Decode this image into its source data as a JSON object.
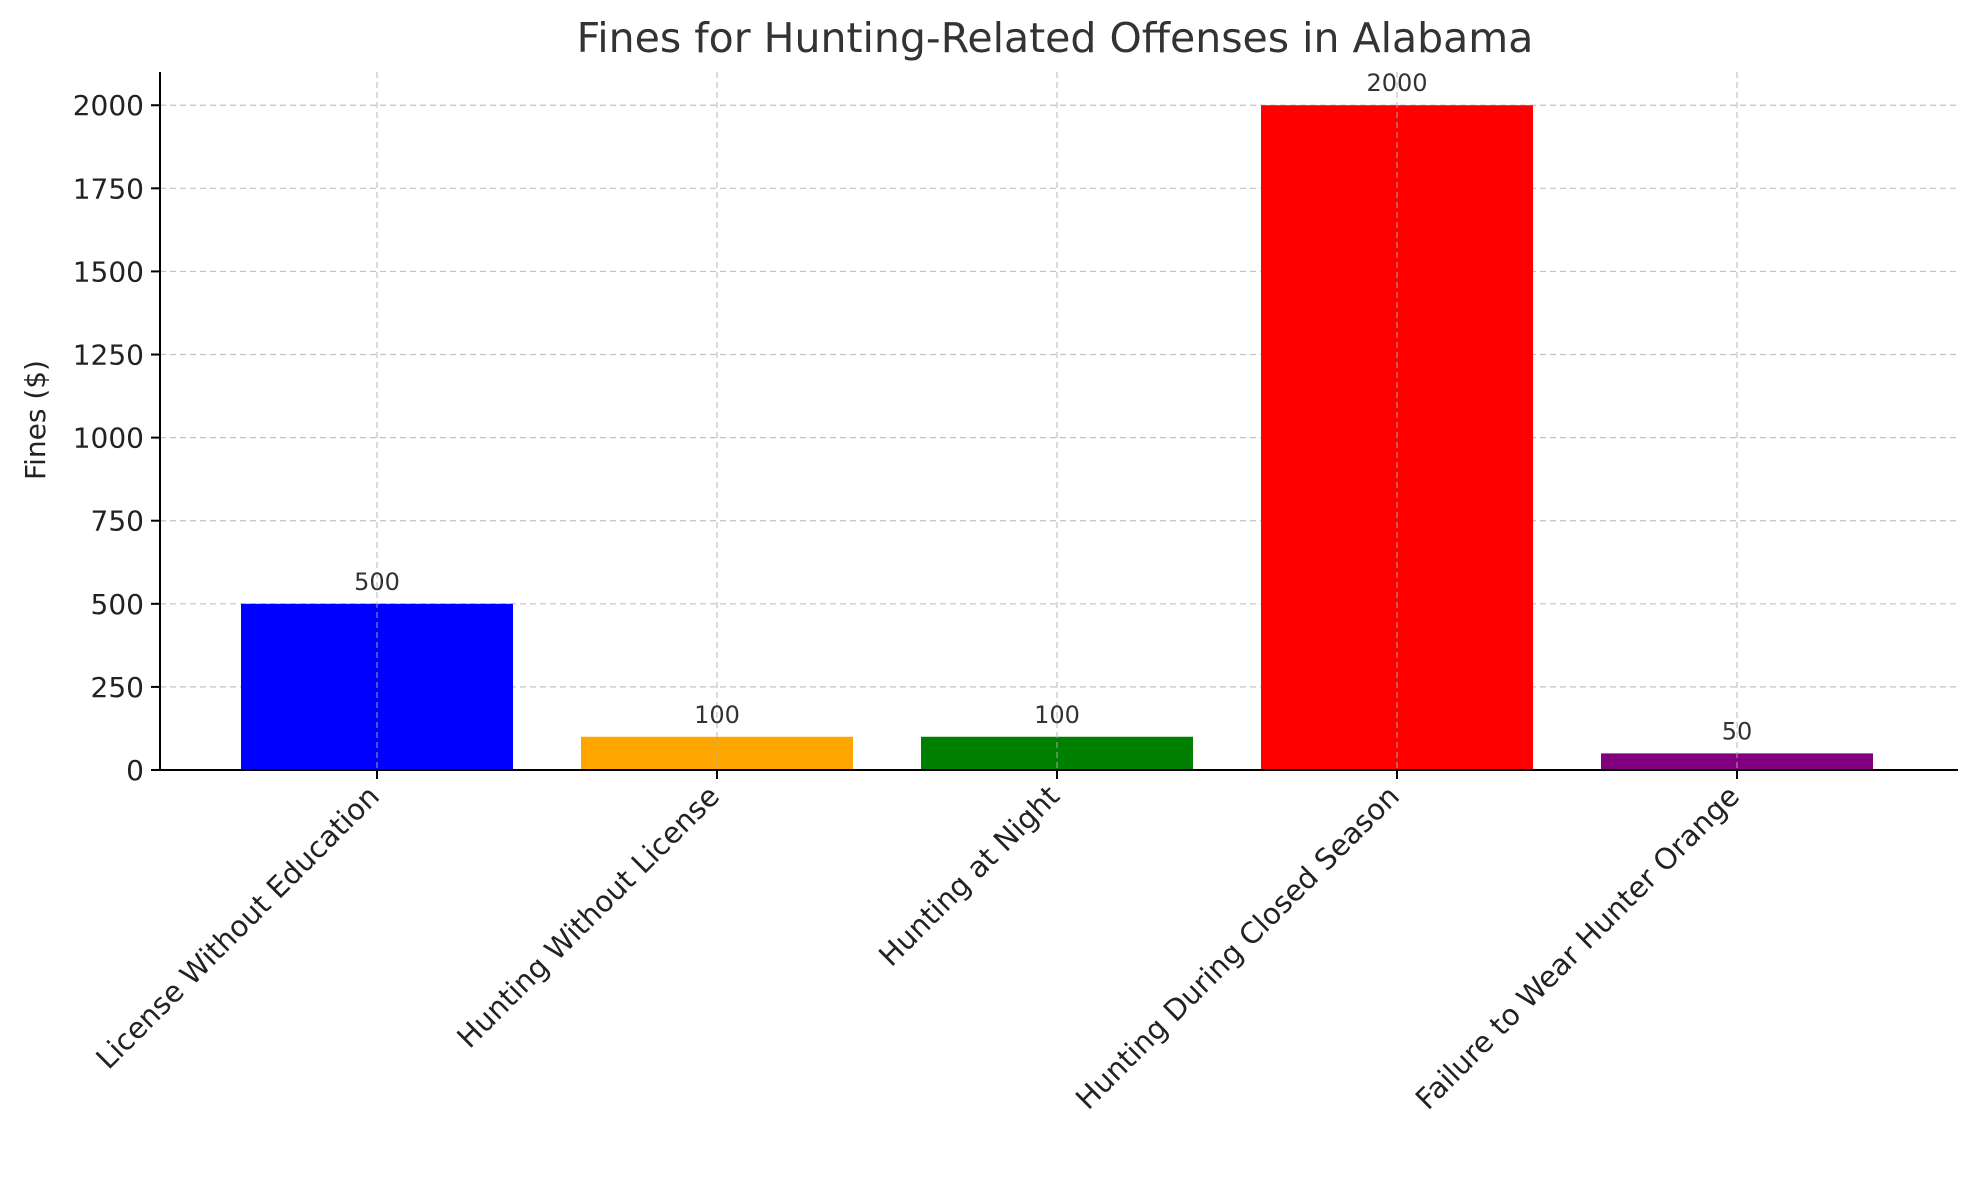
{
  "chart_data": {
    "type": "bar",
    "title": "Fines for Hunting-Related Offenses in Alabama",
    "xlabel": "",
    "ylabel": "Fines ($)",
    "ylim": [
      0,
      2100
    ],
    "yticks": [
      0,
      250,
      500,
      750,
      1000,
      1250,
      1500,
      1750,
      2000
    ],
    "grid": true,
    "categories": [
      "License Without Education",
      "Hunting Without License",
      "Hunting at Night",
      "Hunting During Closed Season",
      "Failure to Wear Hunter Orange"
    ],
    "values": [
      500,
      100,
      100,
      2000,
      50
    ],
    "value_labels": [
      "500",
      "100",
      "100",
      "2000",
      "50"
    ],
    "colors": [
      "#0000ff",
      "#ffa500",
      "#008000",
      "#ff0000",
      "#800080"
    ]
  }
}
